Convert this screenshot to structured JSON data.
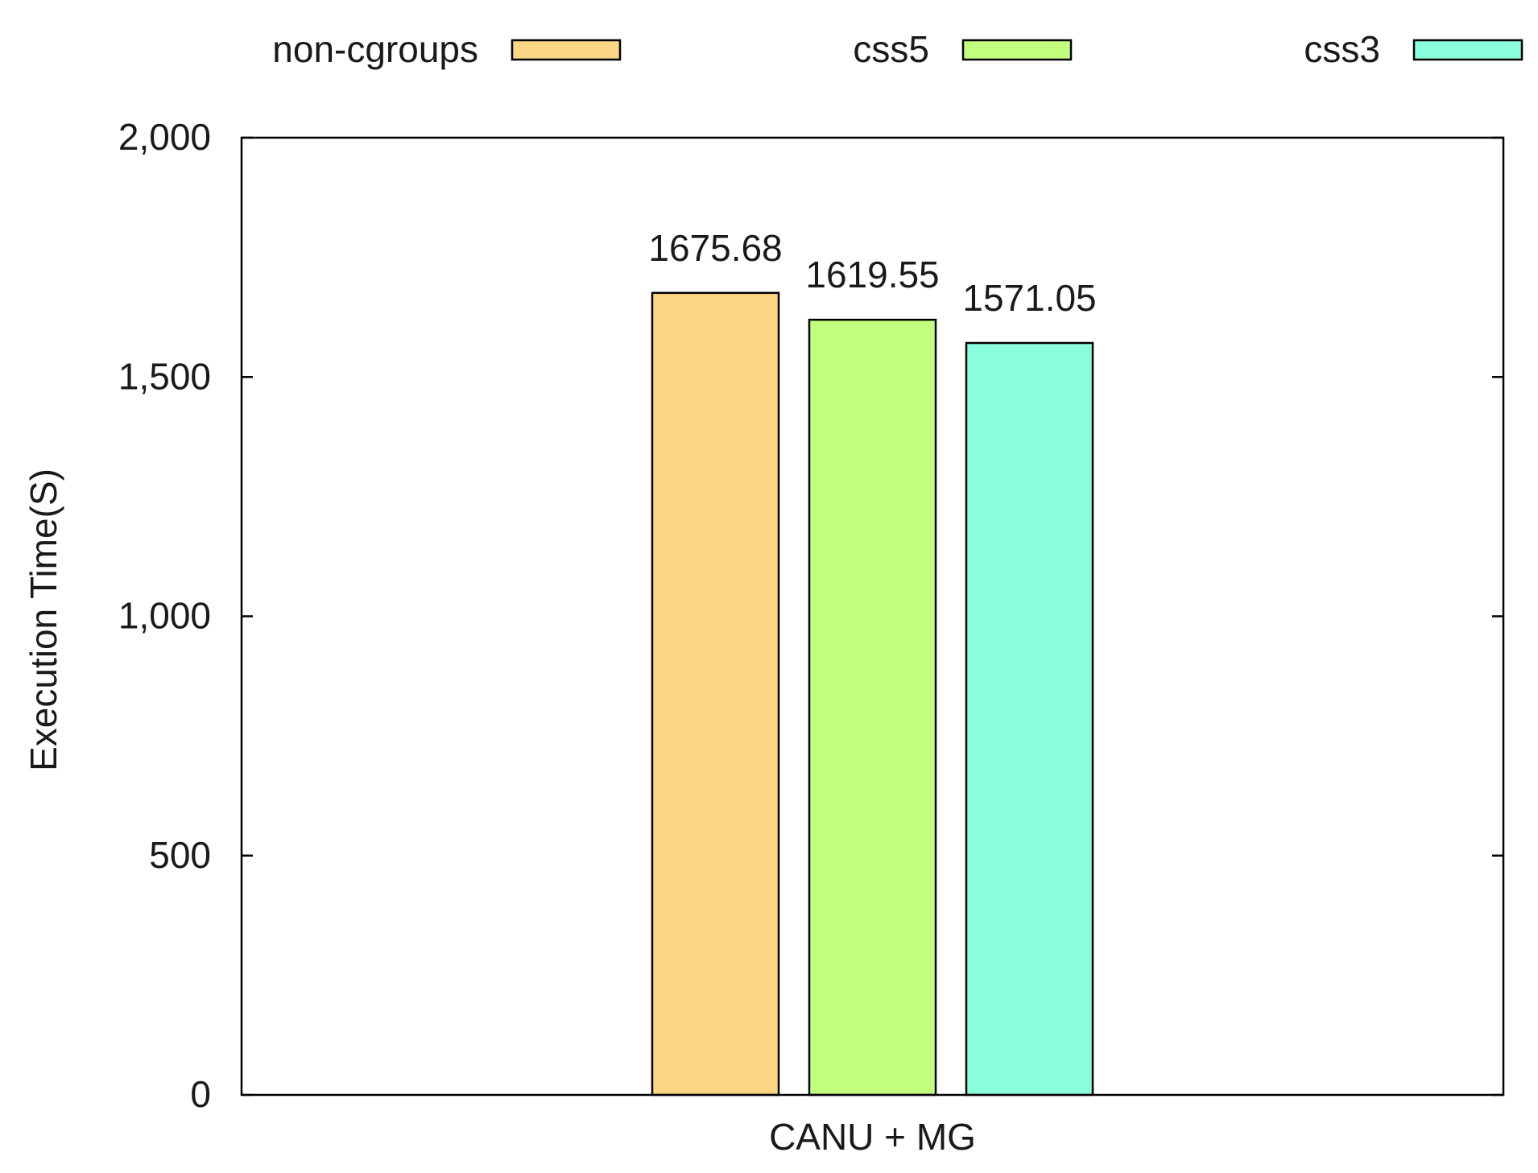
{
  "chart_data": {
    "type": "bar",
    "title": "",
    "xlabel": "",
    "ylabel": "Execution Time(S)",
    "categories": [
      "CANU + MG"
    ],
    "series": [
      {
        "name": "non-cgroups",
        "values": [
          1675.68
        ],
        "color": "#fcd783"
      },
      {
        "name": "css5",
        "values": [
          1619.55
        ],
        "color": "#c3ff7f"
      },
      {
        "name": "css3",
        "values": [
          1571.05
        ],
        "color": "#8afedc"
      }
    ],
    "value_labels": [
      "1675.68",
      "1619.55",
      "1571.05"
    ],
    "ylim": [
      0,
      2000
    ],
    "yticks": [
      0,
      500,
      1000,
      1500,
      2000
    ],
    "ytick_labels": [
      "0",
      "500",
      "1,000",
      "1,500",
      "2,000"
    ],
    "grid": false,
    "legend_position": "top"
  }
}
